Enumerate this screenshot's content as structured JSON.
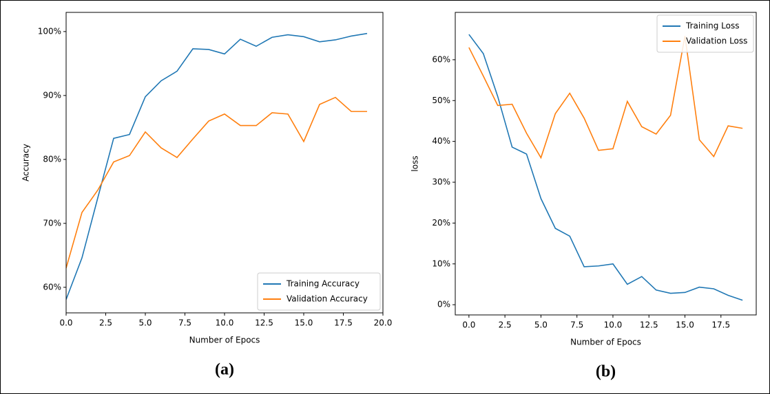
{
  "chart_data": [
    {
      "type": "line",
      "caption": "(a)",
      "xlabel": "Number of Epocs",
      "ylabel": "Accuracy",
      "x": [
        0,
        1,
        2,
        3,
        4,
        5,
        6,
        7,
        8,
        9,
        10,
        11,
        12,
        13,
        14,
        15,
        16,
        17,
        18,
        19
      ],
      "series": [
        {
          "name": "Training Accuracy",
          "color": "#1f77b4",
          "values": [
            58.1,
            64.6,
            74,
            83.3,
            83.9,
            89.8,
            92.3,
            93.8,
            97.3,
            97.2,
            96.5,
            98.8,
            97.7,
            99.1,
            99.5,
            99.2,
            98.4,
            98.7,
            99.3,
            99.7
          ]
        },
        {
          "name": "Validation Accuracy",
          "color": "#ff7f0e",
          "values": [
            63,
            71.7,
            75.2,
            79.6,
            80.6,
            84.3,
            81.8,
            80.3,
            83.2,
            86.0,
            87.1,
            85.3,
            85.3,
            87.3,
            87.1,
            82.8,
            88.6,
            89.7,
            87.5,
            87.5
          ]
        }
      ],
      "xlim": [
        0,
        20
      ],
      "ylim": [
        56,
        103
      ],
      "xticks": [
        {
          "value": 0,
          "label": "0.0"
        },
        2.5,
        {
          "value": 5,
          "label": "5.0"
        },
        7.5,
        {
          "value": 10,
          "label": "10.0"
        },
        12.5,
        {
          "value": 15,
          "label": "15.0"
        },
        17.5,
        {
          "value": 20,
          "label": "20.0"
        }
      ],
      "yticks": [
        {
          "value": 60,
          "label": "60%"
        },
        {
          "value": 70,
          "label": "70%"
        },
        {
          "value": 80,
          "label": "80%"
        },
        {
          "value": 90,
          "label": "90%"
        },
        {
          "value": 100,
          "label": "100%"
        }
      ],
      "legend": "lower right",
      "grid": false
    },
    {
      "type": "line",
      "caption": "(b)",
      "xlabel": "Number of Epocs",
      "ylabel": "loss",
      "x": [
        0,
        1,
        2,
        3,
        4,
        5,
        6,
        7,
        8,
        9,
        10,
        11,
        12,
        13,
        14,
        15,
        16,
        17,
        18,
        19
      ],
      "series": [
        {
          "name": "Training Loss",
          "color": "#1f77b4",
          "values": [
            66.2,
            61.5,
            51,
            38.6,
            36.9,
            26,
            18.7,
            16.8,
            9.3,
            9.5,
            10,
            5,
            6.9,
            3.6,
            2.8,
            3.0,
            4.3,
            3.9,
            2.3,
            1.1
          ]
        },
        {
          "name": "Validation Loss",
          "color": "#ff7f0e",
          "values": [
            63,
            56,
            48.8,
            49.1,
            42,
            36,
            46.8,
            51.8,
            45.7,
            37.8,
            38.2,
            49.8,
            43.6,
            41.8,
            46.4,
            65.8,
            40.4,
            36.3,
            43.8,
            43.2
          ]
        }
      ],
      "xlim": [
        -0.95,
        19.95
      ],
      "ylim": [
        -2.5,
        71.6
      ],
      "xticks": [
        {
          "value": 0,
          "label": "0.0"
        },
        2.5,
        {
          "value": 5,
          "label": "5.0"
        },
        7.5,
        {
          "value": 10,
          "label": "10.0"
        },
        12.5,
        {
          "value": 15,
          "label": "15.0"
        },
        17.5
      ],
      "yticks": [
        {
          "value": 0,
          "label": "0%"
        },
        {
          "value": 10,
          "label": "10%"
        },
        {
          "value": 20,
          "label": "20%"
        },
        {
          "value": 30,
          "label": "30%"
        },
        {
          "value": 40,
          "label": "40%"
        },
        {
          "value": 50,
          "label": "50%"
        },
        {
          "value": 60,
          "label": "60%"
        }
      ],
      "legend": "upper right",
      "grid": false
    }
  ]
}
